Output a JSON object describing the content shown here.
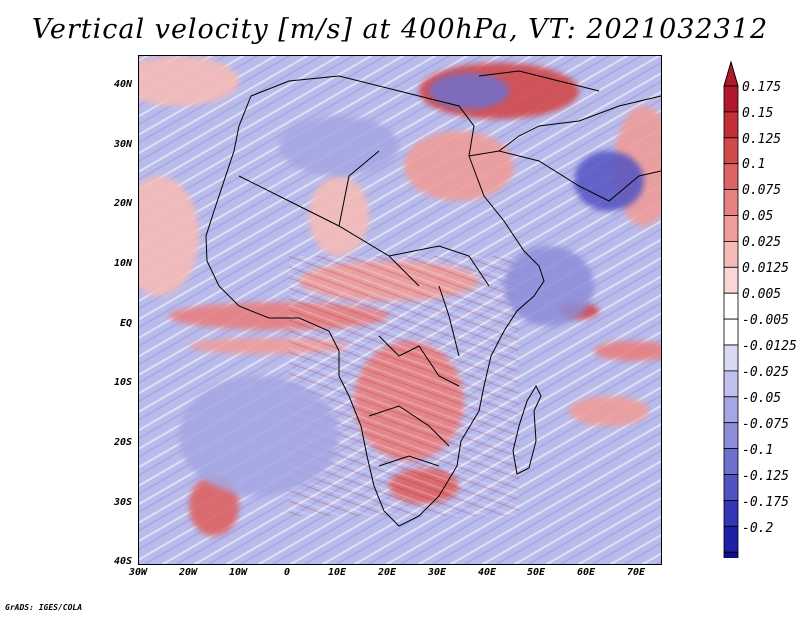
{
  "title": "Vertical velocity [m/s] at 400hPa, VT: 2021032312",
  "lat_labels": [
    "40N",
    "30N",
    "20N",
    "10N",
    "EQ",
    "10S",
    "20S",
    "30S",
    "40S"
  ],
  "lon_labels": [
    "30W",
    "20W",
    "10W",
    "0",
    "10E",
    "20E",
    "30E",
    "40E",
    "50E",
    "60E",
    "70E"
  ],
  "colorbar": {
    "labels": [
      "0.175",
      "0.15",
      "0.125",
      "0.1",
      "0.075",
      "0.05",
      "0.025",
      "0.0125",
      "0.005",
      "-0.005",
      "-0.0125",
      "-0.025",
      "-0.05",
      "-0.075",
      "-0.1",
      "-0.125",
      "-0.175",
      "-0.2"
    ],
    "colors": [
      "#b2182b",
      "#c42f38",
      "#d14a4c",
      "#dd6464",
      "#e78080",
      "#ef9d9a",
      "#f5bbb7",
      "#f9d7d4",
      "#ffffff",
      "#ffffff",
      "#d9d9f3",
      "#bfc0ec",
      "#a5a6e3",
      "#8c8dd9",
      "#6f70ce",
      "#5253c2",
      "#3436b6",
      "#1e20a6",
      "#100f8c"
    ],
    "max_color": "#b2182b",
    "min_color": "#100f8c"
  },
  "footer": "GrADS: IGES/COLA"
}
